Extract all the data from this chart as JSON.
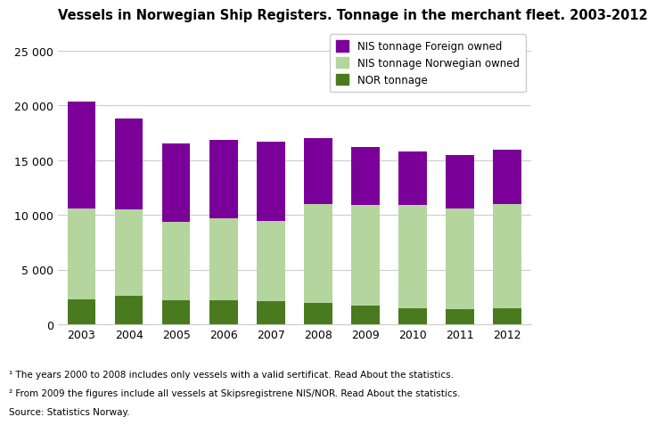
{
  "years": [
    2003,
    2004,
    2005,
    2006,
    2007,
    2008,
    2009,
    2010,
    2011,
    2012
  ],
  "nor_tonnage": [
    2300,
    2600,
    2200,
    2200,
    2100,
    2000,
    1700,
    1500,
    1400,
    1500
  ],
  "nis_norwegian_tonnage": [
    8300,
    7900,
    7200,
    7500,
    7400,
    9000,
    9200,
    9400,
    9200,
    9500
  ],
  "nis_foreign_tonnage": [
    9800,
    8300,
    7100,
    7200,
    7200,
    6000,
    5300,
    4900,
    4900,
    5000
  ],
  "nor_color": "#4a7a1e",
  "nis_norwegian_color": "#b5d59e",
  "nis_foreign_color": "#7b0099",
  "title": "Vessels in Norwegian Ship Registers. Tonnage in the merchant fleet. 2003-2012",
  "ylim": [
    0,
    27000
  ],
  "yticks": [
    0,
    5000,
    10000,
    15000,
    20000,
    25000
  ],
  "ytick_labels": [
    "0",
    "5 000",
    "10 000",
    "15 000",
    "20 000",
    "25 000"
  ],
  "legend_labels": [
    "NIS tonnage Foreign owned",
    "NIS tonnage Norwegian owned",
    "NOR tonnage"
  ],
  "footnote1": "¹ The years 2000 to 2008 includes only vessels with a valid sertificat. Read About the statistics.",
  "footnote2": "² From 2009 the figures include all vessels at Skipsregistrene NIS/NOR. Read About the statistics.",
  "footnote3": "Source: Statistics Norway.",
  "background_color": "#ffffff",
  "grid_color": "#cccccc",
  "title_fontsize": 10.5,
  "tick_fontsize": 9,
  "footnote_fontsize": 7.5
}
